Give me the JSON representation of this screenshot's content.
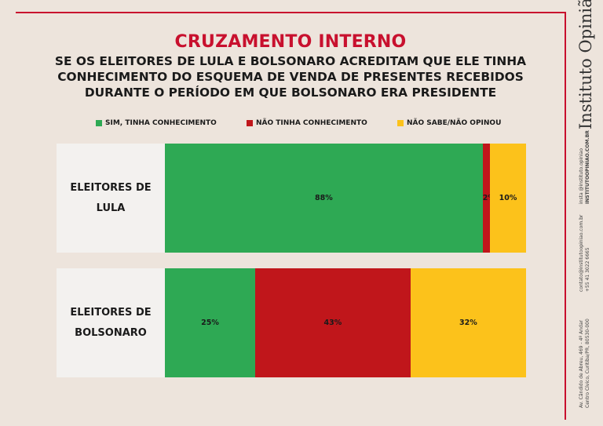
{
  "header": {
    "title": "CRUZAMENTO INTERNO",
    "subtitle_lines": [
      "SE OS ELEITORES DE LULA E BOLSONARO ACREDITAM QUE ELE TINHA",
      "CONHECIMENTO DO ESQUEMA DE VENDA DE PRESENTES RECEBIDOS",
      "DURANTE O PERÍODO EM QUE BOLSONARO ERA PRESIDENTE"
    ]
  },
  "brand": {
    "name": "Instituto Opinião",
    "site_lines": [
      "insta @instituto.opiniao",
      "INSTITUTOOPINIAO.COM.BR"
    ],
    "contact_lines": [
      "contato@institutoopiniao.com.br",
      "+55 41 3022 6665"
    ],
    "address_lines": [
      "Av. Cândido de Abreu, 469 - 4º Andar",
      "Centro Cívico, Curitiba/PR, 80530-000"
    ]
  },
  "chart_data": {
    "type": "bar",
    "orientation": "horizontal-stacked-100",
    "categories": [
      "ELEITORES DE LULA",
      "ELEITORES DE BOLSONARO"
    ],
    "category_lines": [
      [
        "ELEITORES DE",
        "LULA"
      ],
      [
        "ELEITORES DE",
        "BOLSONARO"
      ]
    ],
    "series": [
      {
        "name": "SIM, TINHA CONHECIMENTO",
        "color": "#2ea954",
        "values": [
          88,
          25
        ],
        "labels": [
          "88%",
          "25%"
        ]
      },
      {
        "name": "NÃO TINHA CONHECIMENTO",
        "color": "#c0161b",
        "values": [
          2,
          43
        ],
        "labels": [
          "2%",
          "43%"
        ]
      },
      {
        "name": "NÃO SABE/NÃO OPINOU",
        "color": "#fcc21b",
        "values": [
          10,
          32
        ],
        "labels": [
          "10%",
          "32%"
        ]
      }
    ],
    "legend_position": "top",
    "grid": false
  }
}
